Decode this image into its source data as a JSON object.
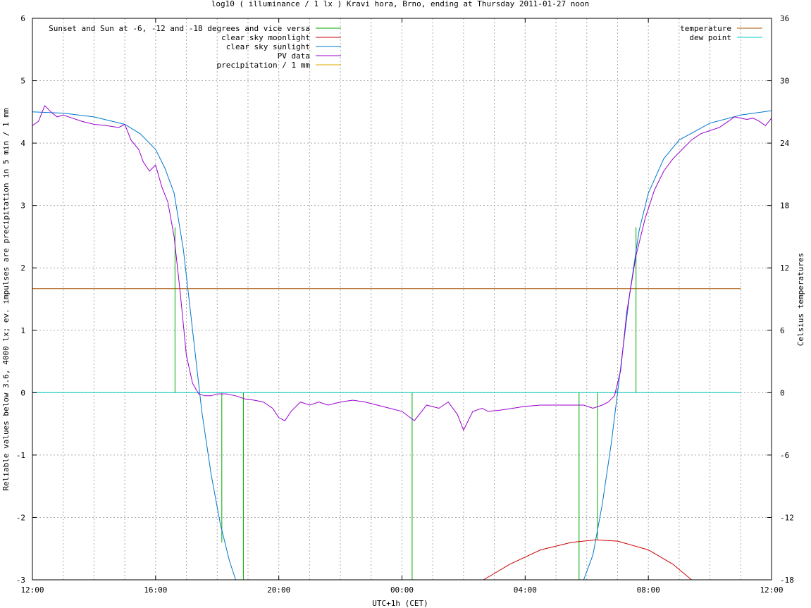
{
  "chart_data": {
    "type": "line",
    "title": "log10 ( illuminance / 1 lx ) Kravi hora, Brno, ending at Thursday 2011-01-27 noon",
    "xlabel": "UTC+1h (CET)",
    "ylabel": "Reliable values below 3.6, 4000 lx; ev. impulses are precipitation in 5 min / 1 mm",
    "y2label": "Celsius temperatures",
    "x_ticks": [
      "12:00",
      "16:00",
      "20:00",
      "00:00",
      "04:00",
      "08:00",
      "12:00"
    ],
    "x_range_hours": [
      12,
      36
    ],
    "ylim": [
      -3,
      6
    ],
    "y_ticks": [
      "-3",
      "-2",
      "-1",
      "0",
      "1",
      "2",
      "3",
      "4",
      "5",
      "6"
    ],
    "y2lim": [
      -18,
      36
    ],
    "y2_ticks": [
      "-18",
      "-12",
      "-6",
      "0",
      "6",
      "12",
      "18",
      "24",
      "30",
      "36"
    ],
    "grid": true,
    "legend_left": [
      {
        "name": "Sunset and Sun at -6, -12 and -18 degrees and vice versa",
        "color": "#00aa00"
      },
      {
        "name": "clear sky moonlight",
        "color": "#cc0000"
      },
      {
        "name": "clear sky sunlight",
        "color": "#0077cc"
      },
      {
        "name": "PV data",
        "color": "#9900cc"
      },
      {
        "name": "precipitation / 1 mm",
        "color": "#ddaa00"
      }
    ],
    "legend_right": [
      {
        "name": "temperature",
        "color": "#aa5500"
      },
      {
        "name": "dew point",
        "color": "#00cccc"
      }
    ],
    "sun_events_hours": [
      16.63,
      18.15,
      18.85,
      24.33,
      29.75,
      30.35,
      30.95,
      31.6
    ],
    "sun_event_heights": [
      2.65,
      -2.4,
      -3,
      -3,
      -3,
      -2.35,
      0.05,
      2.65
    ],
    "temperature": {
      "x": [
        12.0,
        35.0
      ],
      "y": [
        10.0,
        10.0
      ]
    },
    "dew_point": {
      "x": [
        12.0,
        35.0
      ],
      "y": [
        0.0,
        0.0
      ]
    },
    "clear_sky_sunlight": {
      "x": [
        12.0,
        13.0,
        14.0,
        15.0,
        15.5,
        16.0,
        16.3,
        16.6,
        16.9,
        17.2,
        17.5,
        17.8,
        18.1,
        18.4,
        18.6,
        29.9,
        30.2,
        30.5,
        30.8,
        31.1,
        31.4,
        31.7,
        32.0,
        32.5,
        33.0,
        34.0,
        35.0,
        36.0
      ],
      "y": [
        4.5,
        4.48,
        4.42,
        4.3,
        4.15,
        3.9,
        3.6,
        3.2,
        2.3,
        1.0,
        -0.3,
        -1.3,
        -2.1,
        -2.7,
        -3.0,
        -3.0,
        -2.6,
        -1.8,
        -0.8,
        0.4,
        1.6,
        2.6,
        3.2,
        3.75,
        4.05,
        4.32,
        4.45,
        4.52
      ]
    },
    "clear_sky_moonlight": {
      "x": [
        26.65,
        27.5,
        28.5,
        29.5,
        30.3,
        31.0,
        32.0,
        32.8,
        33.4
      ],
      "y": [
        -3.0,
        -2.75,
        -2.52,
        -2.4,
        -2.36,
        -2.38,
        -2.52,
        -2.75,
        -3.0
      ]
    },
    "pv_data": {
      "x": [
        12.0,
        12.2,
        12.4,
        12.6,
        12.8,
        13.0,
        13.3,
        13.6,
        14.0,
        14.4,
        14.8,
        15.0,
        15.2,
        15.45,
        15.6,
        15.8,
        16.0,
        16.2,
        16.4,
        16.6,
        16.8,
        17.0,
        17.2,
        17.4,
        17.6,
        17.8,
        18.0,
        18.3,
        18.6,
        18.9,
        19.2,
        19.5,
        19.8,
        20.0,
        20.2,
        20.4,
        20.7,
        21.0,
        21.3,
        21.6,
        22.0,
        22.4,
        22.8,
        23.2,
        23.6,
        24.0,
        24.4,
        24.8,
        25.2,
        25.5,
        25.8,
        26.0,
        26.3,
        26.6,
        26.8,
        27.2,
        27.6,
        28.0,
        28.5,
        29.0,
        29.5,
        29.9,
        30.2,
        30.5,
        30.7,
        30.9,
        31.1,
        31.3,
        31.6,
        31.9,
        32.2,
        32.5,
        32.8,
        33.1,
        33.4,
        33.7,
        34.0,
        34.3,
        34.6,
        34.8,
        35.0,
        35.2,
        35.4,
        35.6,
        35.8,
        36.0
      ],
      "y": [
        4.28,
        4.35,
        4.6,
        4.5,
        4.42,
        4.45,
        4.4,
        4.35,
        4.3,
        4.28,
        4.25,
        4.3,
        4.05,
        3.9,
        3.7,
        3.55,
        3.65,
        3.3,
        3.05,
        2.5,
        1.6,
        0.6,
        0.15,
        -0.02,
        -0.05,
        -0.05,
        -0.02,
        -0.02,
        -0.05,
        -0.1,
        -0.12,
        -0.15,
        -0.25,
        -0.4,
        -0.45,
        -0.3,
        -0.15,
        -0.2,
        -0.15,
        -0.2,
        -0.15,
        -0.12,
        -0.15,
        -0.2,
        -0.25,
        -0.3,
        -0.45,
        -0.2,
        -0.25,
        -0.15,
        -0.35,
        -0.6,
        -0.3,
        -0.25,
        -0.3,
        -0.28,
        -0.25,
        -0.22,
        -0.2,
        -0.2,
        -0.2,
        -0.2,
        -0.25,
        -0.2,
        -0.15,
        -0.05,
        0.35,
        1.3,
        2.2,
        2.8,
        3.25,
        3.55,
        3.75,
        3.9,
        4.05,
        4.15,
        4.2,
        4.25,
        4.35,
        4.42,
        4.4,
        4.38,
        4.4,
        4.35,
        4.28,
        4.4
      ]
    },
    "annotations": []
  }
}
